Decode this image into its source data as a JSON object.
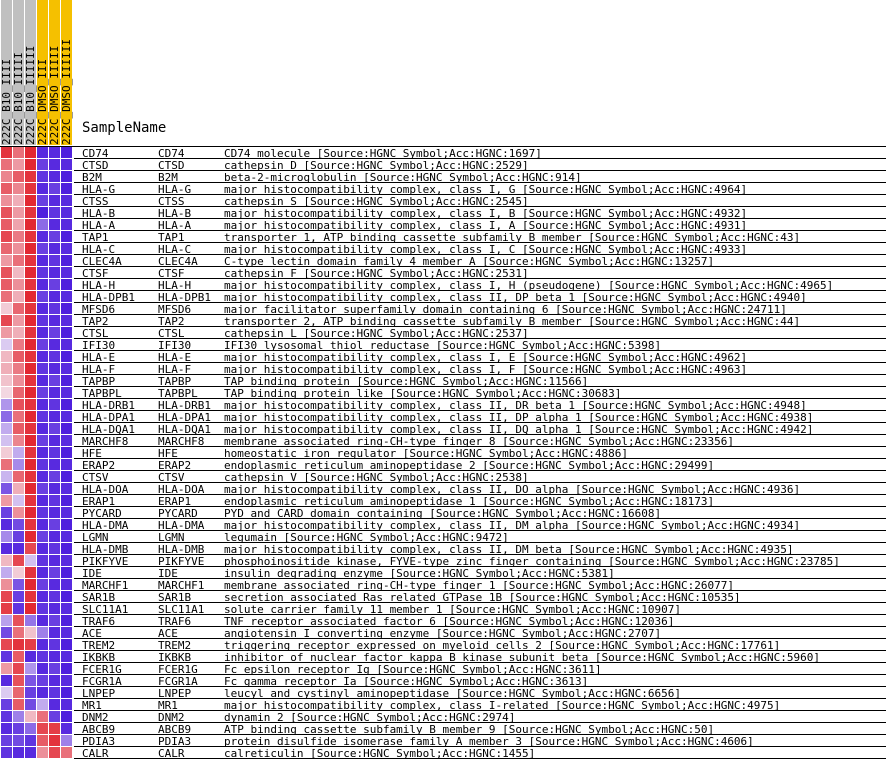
{
  "chart_data": {
    "type": "heatmap",
    "title": "",
    "row_header": "SampleName",
    "columns": [
      {
        "name": "222C_B10_IIII",
        "color": "#c0c0c0"
      },
      {
        "name": "222C_B10_IIIII",
        "color": "#c0c0c0"
      },
      {
        "name": "222C_B10_IIIIII",
        "color": "#c0c0c0"
      },
      {
        "name": "222C_DMSO_III",
        "color": "#f5c000"
      },
      {
        "name": "222C_DMSO_IIIII",
        "color": "#f5c000"
      },
      {
        "name": "222C_DMSO_IIIIII",
        "color": "#f5c000"
      }
    ],
    "value_range": [
      -2,
      2
    ],
    "rows": [
      {
        "id": "CD74",
        "symbol": "CD74",
        "desc": "CD74 molecule [Source:HGNC Symbol;Acc:HGNC:1697]",
        "values": [
          1.8,
          1.2,
          1.9,
          -1.8,
          -1.8,
          -1.9
        ]
      },
      {
        "id": "CTSD",
        "symbol": "CTSD",
        "desc": "cathepsin D [Source:HGNC Symbol;Acc:HGNC:2529]",
        "values": [
          1.2,
          0.8,
          1.9,
          -1.6,
          -1.8,
          -1.8
        ]
      },
      {
        "id": "B2M",
        "symbol": "B2M",
        "desc": "beta-2-microglobulin [Source:HGNC Symbol;Acc:HGNC:914]",
        "values": [
          1.0,
          1.4,
          1.8,
          -1.7,
          -1.8,
          -1.9
        ]
      },
      {
        "id": "HLA-G",
        "symbol": "HLA-G",
        "desc": "major histocompatibility complex, class I, G [Source:HGNC Symbol;Acc:HGNC:4964]",
        "values": [
          1.4,
          1.0,
          1.8,
          -1.8,
          -1.6,
          -1.9
        ]
      },
      {
        "id": "CTSS",
        "symbol": "CTSS",
        "desc": "cathepsin S [Source:HGNC Symbol;Acc:HGNC:2545]",
        "values": [
          0.9,
          0.6,
          1.9,
          -1.6,
          -1.8,
          -1.8
        ]
      },
      {
        "id": "HLA-B",
        "symbol": "HLA-B",
        "desc": "major histocompatibility complex, class I, B [Source:HGNC Symbol;Acc:HGNC:4932]",
        "values": [
          1.5,
          0.8,
          1.8,
          -1.9,
          -1.7,
          -1.8
        ]
      },
      {
        "id": "HLA-A",
        "symbol": "HLA-A",
        "desc": "major histocompatibility complex, class I, A [Source:HGNC Symbol;Acc:HGNC:4931]",
        "values": [
          1.4,
          0.7,
          1.9,
          -1.2,
          -1.8,
          -1.8
        ]
      },
      {
        "id": "TAP1",
        "symbol": "TAP1",
        "desc": "transporter 1, ATP binding cassette subfamily B member [Source:HGNC Symbol;Acc:HGNC:43]",
        "values": [
          1.6,
          1.1,
          1.8,
          -1.8,
          -1.6,
          -1.9
        ]
      },
      {
        "id": "HLA-C",
        "symbol": "HLA-C",
        "desc": "major histocompatibility complex, class I, C [Source:HGNC Symbol;Acc:HGNC:4933]",
        "values": [
          1.3,
          0.9,
          1.9,
          -1.6,
          -1.8,
          -1.8
        ]
      },
      {
        "id": "CLEC4A",
        "symbol": "CLEC4A",
        "desc": "C-type lectin domain family 4 member A [Source:HGNC Symbol;Acc:HGNC:13257]",
        "values": [
          0.8,
          1.2,
          1.8,
          -1.8,
          -1.7,
          -1.9
        ]
      },
      {
        "id": "CTSF",
        "symbol": "CTSF",
        "desc": "cathepsin F [Source:HGNC Symbol;Acc:HGNC:2531]",
        "values": [
          1.5,
          0.5,
          1.9,
          -1.7,
          -1.8,
          -1.8
        ]
      },
      {
        "id": "HLA-H",
        "symbol": "HLA-H",
        "desc": "major histocompatibility complex, class I, H (pseudogene) [Source:HGNC Symbol;Acc:HGNC:4965]",
        "values": [
          1.4,
          0.9,
          1.8,
          -1.8,
          -1.6,
          -1.9
        ]
      },
      {
        "id": "HLA-DPB1",
        "symbol": "HLA-DPB1",
        "desc": "major histocompatibility complex, class II, DP beta 1 [Source:HGNC Symbol;Acc:HGNC:4940]",
        "values": [
          1.2,
          0.6,
          1.9,
          -1.6,
          -1.8,
          -1.8
        ]
      },
      {
        "id": "MFSD6",
        "symbol": "MFSD6",
        "desc": "major facilitator superfamily domain containing 6 [Source:HGNC Symbol;Acc:HGNC:24711]",
        "values": [
          0.3,
          1.3,
          1.8,
          -1.8,
          -1.7,
          -1.9
        ]
      },
      {
        "id": "TAP2",
        "symbol": "TAP2",
        "desc": "transporter 2, ATP binding cassette subfamily B member [Source:HGNC Symbol;Acc:HGNC:44]",
        "values": [
          1.6,
          0.8,
          1.9,
          -1.7,
          -1.8,
          -1.8
        ]
      },
      {
        "id": "CTSL",
        "symbol": "CTSL",
        "desc": "cathepsin L [Source:HGNC Symbol;Acc:HGNC:2537]",
        "values": [
          0.8,
          0.6,
          1.8,
          -1.8,
          -1.6,
          -1.9
        ]
      },
      {
        "id": "IFI30",
        "symbol": "IFI30",
        "desc": "IFI30 lysosomal thiol reductase [Source:HGNC Symbol;Acc:HGNC:5398]",
        "values": [
          -0.3,
          1.1,
          1.9,
          -1.6,
          -1.8,
          -1.8
        ]
      },
      {
        "id": "HLA-E",
        "symbol": "HLA-E",
        "desc": "major histocompatibility complex, class I, E [Source:HGNC Symbol;Acc:HGNC:4962]",
        "values": [
          0.5,
          1.4,
          1.8,
          -1.8,
          -1.7,
          -1.9
        ]
      },
      {
        "id": "HLA-F",
        "symbol": "HLA-F",
        "desc": "major histocompatibility complex, class I, F [Source:HGNC Symbol;Acc:HGNC:4963]",
        "values": [
          0.6,
          1.1,
          1.9,
          -1.7,
          -1.8,
          -1.8
        ]
      },
      {
        "id": "TAPBP",
        "symbol": "TAPBP",
        "desc": "TAP binding protein [Source:HGNC Symbol;Acc:HGNC:11566]",
        "values": [
          0.4,
          0.9,
          1.8,
          -1.8,
          -1.6,
          -1.9
        ]
      },
      {
        "id": "TAPBPL",
        "symbol": "TAPBPL",
        "desc": "TAP binding protein like [Source:HGNC Symbol;Acc:HGNC:30683]",
        "values": [
          0.2,
          1.3,
          1.9,
          -1.6,
          -1.8,
          -1.8
        ]
      },
      {
        "id": "HLA-DRB1",
        "symbol": "HLA-DRB1",
        "desc": "major histocompatibility complex, class II, DR beta 1 [Source:HGNC Symbol;Acc:HGNC:4948]",
        "values": [
          -0.8,
          1.5,
          1.8,
          -1.8,
          -1.7,
          -1.9
        ]
      },
      {
        "id": "HLA-DPA1",
        "symbol": "HLA-DPA1",
        "desc": "major histocompatibility complex, class II, DP alpha 1 [Source:HGNC Symbol;Acc:HGNC:4938]",
        "values": [
          -1.2,
          1.2,
          1.9,
          -1.7,
          -1.8,
          -1.8
        ]
      },
      {
        "id": "HLA-DQA1",
        "symbol": "HLA-DQA1",
        "desc": "major histocompatibility complex, class II, DQ alpha 1 [Source:HGNC Symbol;Acc:HGNC:4942]",
        "values": [
          -0.6,
          1.4,
          1.8,
          -1.8,
          -1.6,
          -1.9
        ]
      },
      {
        "id": "MARCHF8",
        "symbol": "MARCHF8",
        "desc": "membrane associated ring-CH-type finger 8 [Source:HGNC Symbol;Acc:HGNC:23356]",
        "values": [
          -0.4,
          1.0,
          1.9,
          -1.6,
          -1.8,
          -1.8
        ]
      },
      {
        "id": "HFE",
        "symbol": "HFE",
        "desc": "homeostatic iron regulator [Source:HGNC Symbol;Acc:HGNC:4886]",
        "values": [
          0.3,
          -0.6,
          1.8,
          -1.8,
          -1.7,
          -1.9
        ]
      },
      {
        "id": "ERAP2",
        "symbol": "ERAP2",
        "desc": "endoplasmic reticulum aminopeptidase 2 [Source:HGNC Symbol;Acc:HGNC:29499]",
        "values": [
          1.2,
          -0.9,
          1.9,
          -1.7,
          -1.8,
          -1.8
        ]
      },
      {
        "id": "CTSV",
        "symbol": "CTSV",
        "desc": "cathepsin V [Source:HGNC Symbol;Acc:HGNC:2538]",
        "values": [
          -0.5,
          1.3,
          1.8,
          -1.8,
          -1.6,
          -1.9
        ]
      },
      {
        "id": "HLA-DOA",
        "symbol": "HLA-DOA",
        "desc": "major histocompatibility complex, class II, DO alpha [Source:HGNC Symbol;Acc:HGNC:4936]",
        "values": [
          -1.4,
          0.6,
          1.9,
          -1.6,
          -1.8,
          -1.8
        ]
      },
      {
        "id": "ERAP1",
        "symbol": "ERAP1",
        "desc": "endoplasmic reticulum aminopeptidase 1 [Source:HGNC Symbol;Acc:HGNC:18173]",
        "values": [
          0.8,
          -0.4,
          1.8,
          -1.8,
          -1.7,
          -1.9
        ]
      },
      {
        "id": "PYCARD",
        "symbol": "PYCARD",
        "desc": "PYD and CARD domain containing [Source:HGNC Symbol;Acc:HGNC:16608]",
        "values": [
          -1.6,
          0.9,
          1.9,
          -1.7,
          -1.8,
          -1.8
        ]
      },
      {
        "id": "HLA-DMA",
        "symbol": "HLA-DMA",
        "desc": "major histocompatibility complex, class II, DM alpha [Source:HGNC Symbol;Acc:HGNC:4934]",
        "values": [
          -1.8,
          -1.5,
          1.8,
          -1.8,
          -1.6,
          -1.9
        ]
      },
      {
        "id": "LGMN",
        "symbol": "LGMN",
        "desc": "legumain [Source:HGNC Symbol;Acc:HGNC:9472]",
        "values": [
          -0.9,
          -1.6,
          1.9,
          -1.6,
          -1.8,
          -1.8
        ]
      },
      {
        "id": "HLA-DMB",
        "symbol": "HLA-DMB",
        "desc": "major histocompatibility complex, class II, DM beta [Source:HGNC Symbol;Acc:HGNC:4935]",
        "values": [
          -1.8,
          -1.8,
          1.6,
          -1.8,
          -1.7,
          -1.9
        ]
      },
      {
        "id": "PIKFYVE",
        "symbol": "PIKFYVE",
        "desc": "phosphoinositide kinase, FYVE-type zinc finger containing [Source:HGNC Symbol;Acc:HGNC:23785]",
        "values": [
          0.5,
          1.6,
          -0.4,
          -1.7,
          -1.8,
          -1.8
        ]
      },
      {
        "id": "IDE",
        "symbol": "IDE",
        "desc": "insulin degrading enzyme [Source:HGNC Symbol;Acc:HGNC:5381]",
        "values": [
          -0.6,
          0.3,
          1.8,
          -1.8,
          -1.6,
          -1.9
        ]
      },
      {
        "id": "MARCHF1",
        "symbol": "MARCHF1",
        "desc": "membrane associated ring-CH-type finger 1 [Source:HGNC Symbol;Acc:HGNC:26077]",
        "values": [
          0.9,
          -1.4,
          1.9,
          -1.6,
          -1.8,
          -1.8
        ]
      },
      {
        "id": "SAR1B",
        "symbol": "SAR1B",
        "desc": "secretion associated Ras related GTPase 1B [Source:HGNC Symbol;Acc:HGNC:10535]",
        "values": [
          1.6,
          -1.6,
          1.8,
          -1.8,
          -1.7,
          -1.9
        ]
      },
      {
        "id": "SLC11A1",
        "symbol": "SLC11A1",
        "desc": "solute carrier family 11 member 1 [Source:HGNC Symbol;Acc:HGNC:10907]",
        "values": [
          1.7,
          -1.7,
          1.9,
          -1.7,
          -1.8,
          -1.8
        ]
      },
      {
        "id": "TRAF6",
        "symbol": "TRAF6",
        "desc": "TNF receptor associated factor 6 [Source:HGNC Symbol;Acc:HGNC:12036]",
        "values": [
          -0.7,
          1.5,
          -1.1,
          -1.8,
          -1.6,
          -1.9
        ]
      },
      {
        "id": "ACE",
        "symbol": "ACE",
        "desc": "angiotensin I converting enzyme [Source:HGNC Symbol;Acc:HGNC:2707]",
        "values": [
          -1.5,
          1.2,
          0.4,
          -1.0,
          -1.8,
          -1.8
        ]
      },
      {
        "id": "TREM2",
        "symbol": "TREM2",
        "desc": "triggering receptor expressed on myeloid cells 2 [Source:HGNC Symbol;Acc:HGNC:17761]",
        "values": [
          1.6,
          1.8,
          1.7,
          -1.8,
          -1.7,
          -1.9
        ]
      },
      {
        "id": "IKBKB",
        "symbol": "IKBKB",
        "desc": "inhibitor of nuclear factor kappa B kinase subunit beta [Source:HGNC Symbol;Acc:HGNC:5960]",
        "values": [
          -1.7,
          1.4,
          -1.8,
          -1.7,
          -1.8,
          -1.8
        ]
      },
      {
        "id": "FCER1G",
        "symbol": "FCER1G",
        "desc": "Fc epsilon receptor Ig [Source:HGNC Symbol;Acc:HGNC:3611]",
        "values": [
          0.8,
          1.6,
          -0.8,
          -1.8,
          -1.6,
          -1.9
        ]
      },
      {
        "id": "FCGR1A",
        "symbol": "FCGR1A",
        "desc": "Fc gamma receptor Ia [Source:HGNC Symbol;Acc:HGNC:3613]",
        "values": [
          -1.8,
          1.5,
          -1.4,
          -1.6,
          -1.8,
          -1.8
        ]
      },
      {
        "id": "LNPEP",
        "symbol": "LNPEP",
        "desc": "leucyl and cystinyl aminopeptidase [Source:HGNC Symbol;Acc:HGNC:6656]",
        "values": [
          -0.3,
          1.3,
          -1.6,
          -1.8,
          -1.7,
          -1.9
        ]
      },
      {
        "id": "MR1",
        "symbol": "MR1",
        "desc": "major histocompatibility complex, class I-related [Source:HGNC Symbol;Acc:HGNC:4975]",
        "values": [
          -1.6,
          1.4,
          -1.5,
          -0.6,
          -1.8,
          -1.8
        ]
      },
      {
        "id": "DNM2",
        "symbol": "DNM2",
        "desc": "dynamin 2 [Source:HGNC Symbol;Acc:HGNC:2974]",
        "values": [
          -1.7,
          -1.0,
          0.5,
          1.2,
          -1.6,
          -1.9
        ]
      },
      {
        "id": "ABCB9",
        "symbol": "ABCB9",
        "desc": "ATP binding cassette subfamily B member 9 [Source:HGNC Symbol;Acc:HGNC:50]",
        "values": [
          -1.8,
          -1.6,
          -1.2,
          1.6,
          1.7,
          -1.8
        ]
      },
      {
        "id": "PDIA3",
        "symbol": "PDIA3",
        "desc": "protein disulfide isomerase family A member 3 [Source:HGNC Symbol;Acc:HGNC:4606]",
        "values": [
          -1.6,
          -1.5,
          -1.7,
          1.4,
          1.8,
          -1.0
        ]
      },
      {
        "id": "CALR",
        "symbol": "CALR",
        "desc": "calreticulin [Source:HGNC Symbol;Acc:HGNC:1455]",
        "values": [
          -1.7,
          -1.8,
          -1.8,
          0.9,
          1.6,
          1.2
        ]
      }
    ]
  }
}
